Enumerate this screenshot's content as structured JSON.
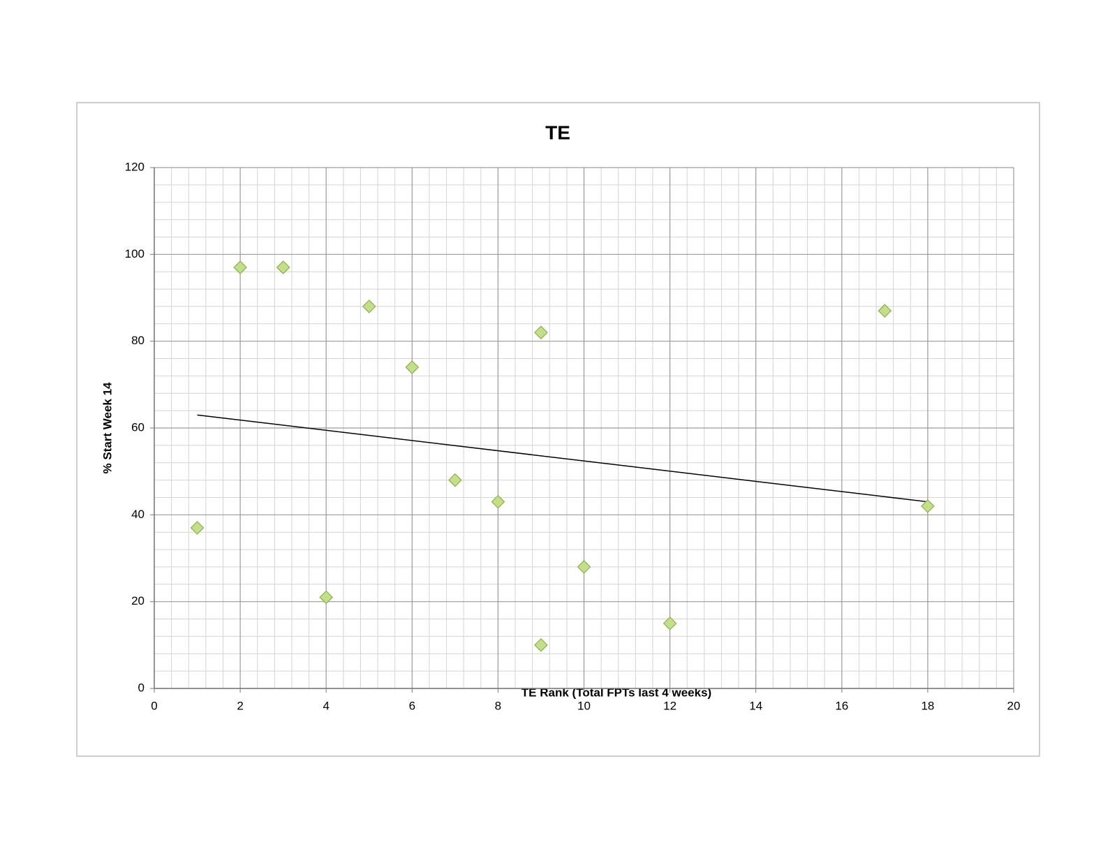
{
  "chart_data": {
    "type": "scatter",
    "title": "TE",
    "x_label": "TE Rank (Total FPTs last 4 weeks)",
    "y_label": "% Start Week 14",
    "x": [
      1,
      2,
      3,
      4,
      5,
      6,
      7,
      8,
      9,
      9,
      10,
      12,
      17,
      18
    ],
    "values": [
      37,
      97,
      97,
      21,
      88,
      74,
      48,
      43,
      82,
      10,
      28,
      15,
      87,
      42
    ],
    "color": "#c3de8c",
    "edge_color": "#8fb04a",
    "trendline": {
      "x": [
        1,
        18
      ],
      "y": [
        63,
        43
      ],
      "color": "#000000"
    },
    "xlim": [
      0,
      20
    ],
    "xticks": [
      0,
      2,
      4,
      6,
      8,
      10,
      12,
      14,
      16,
      18,
      20
    ],
    "ylim": [
      0,
      120
    ],
    "yticks": [
      0,
      20,
      40,
      60,
      80,
      100,
      120
    ],
    "grid": true,
    "minor_grid_divisions": 5
  }
}
